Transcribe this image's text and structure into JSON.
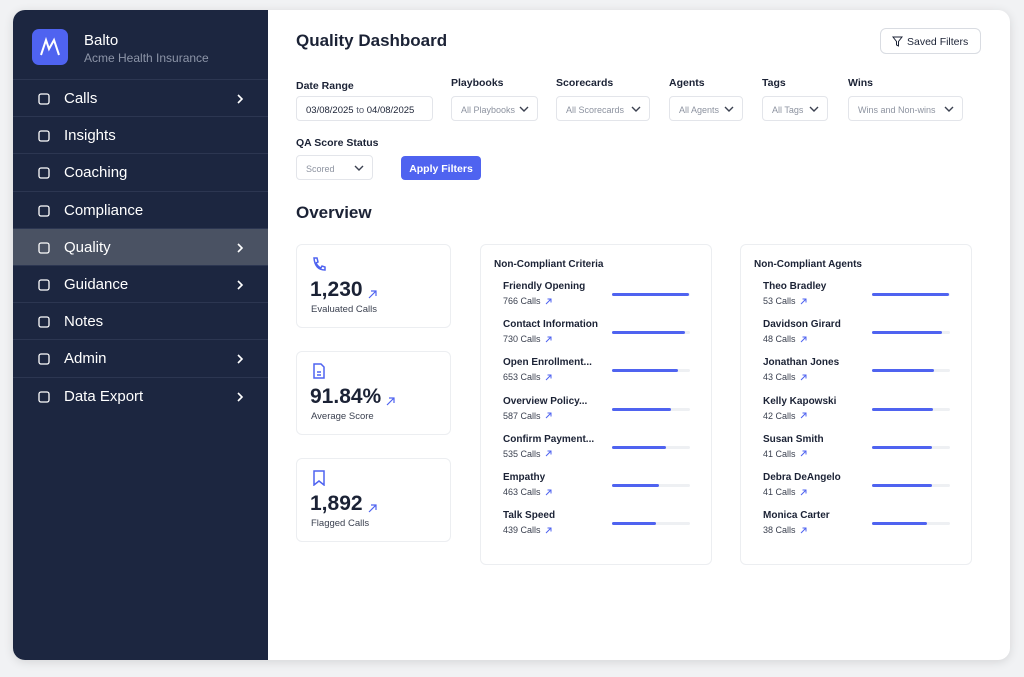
{
  "sidebar": {
    "brand": "Balto",
    "org": "Acme Health Insurance",
    "menu": [
      {
        "label": "Calls",
        "has_submenu": true
      },
      {
        "label": "Insights",
        "has_submenu": false
      },
      {
        "label": "Coaching",
        "has_submenu": false
      },
      {
        "label": "Compliance",
        "has_submenu": false
      },
      {
        "label": "Quality",
        "has_submenu": true,
        "active": true
      },
      {
        "label": "Guidance",
        "has_submenu": true
      },
      {
        "label": "Notes",
        "has_submenu": false
      },
      {
        "label": "Admin",
        "has_submenu": true
      },
      {
        "label": "Data Export",
        "has_submenu": true
      }
    ]
  },
  "header": {
    "title": "Quality Dashboard",
    "saved_filters": "Saved Filters"
  },
  "filters": {
    "date_range": {
      "label": "Date Range",
      "start": "03/08/2025",
      "sep": "to",
      "end": "04/08/2025"
    },
    "playbooks": {
      "label": "Playbooks",
      "value": "All Playbooks"
    },
    "scorecards": {
      "label": "Scorecards",
      "value": "All Scorecards"
    },
    "agents": {
      "label": "Agents",
      "value": "All Agents"
    },
    "tags": {
      "label": "Tags",
      "value": "All Tags"
    },
    "wins": {
      "label": "Wins",
      "value": "Wins and Non-wins"
    },
    "qa_score_status": {
      "label": "QA Score Status",
      "value": "Scored"
    },
    "apply": "Apply Filters"
  },
  "overview": {
    "title": "Overview",
    "stats": [
      {
        "value": "1,230",
        "label": "Evaluated Calls"
      },
      {
        "value": "91.84%",
        "label": "Average Score"
      },
      {
        "value": "1,892",
        "label": "Flagged Calls"
      }
    ]
  },
  "non_compliant_criteria": {
    "title": "Non-Compliant Criteria",
    "unit": "Calls",
    "rows": [
      {
        "name": "Friendly Opening",
        "calls": 766
      },
      {
        "name": "Contact Information",
        "calls": 730
      },
      {
        "name": "Open Enrollment...",
        "calls": 653
      },
      {
        "name": "Overview Policy...",
        "calls": 587
      },
      {
        "name": "Confirm Payment...",
        "calls": 535
      },
      {
        "name": "Empathy",
        "calls": 463
      },
      {
        "name": "Talk Speed",
        "calls": 439
      }
    ]
  },
  "non_compliant_agents": {
    "title": "Non-Compliant Agents",
    "unit": "Calls",
    "rows": [
      {
        "name": "Theo Bradley",
        "calls": 53
      },
      {
        "name": "Davidson Girard",
        "calls": 48
      },
      {
        "name": "Jonathan Jones",
        "calls": 43
      },
      {
        "name": "Kelly Kapowski",
        "calls": 42
      },
      {
        "name": "Susan Smith",
        "calls": 41
      },
      {
        "name": "Debra DeAngelo",
        "calls": 41
      },
      {
        "name": "Monica Carter",
        "calls": 38
      }
    ]
  }
}
